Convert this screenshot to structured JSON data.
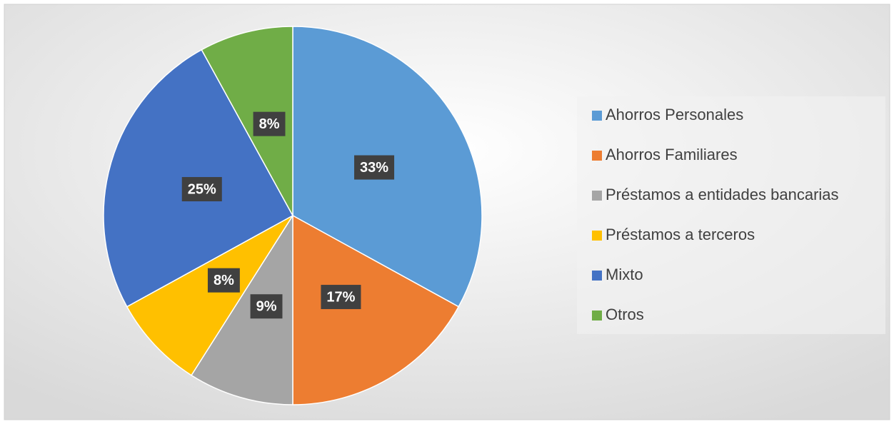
{
  "chart_data": {
    "type": "pie",
    "categories": [
      "Ahorros Personales",
      "Ahorros Familiares",
      "Préstamos a entidades bancarias",
      "Préstamos a terceros",
      "Mixto",
      "Otros"
    ],
    "values": [
      33,
      17,
      9,
      8,
      25,
      8
    ],
    "value_labels": [
      "33%",
      "17%",
      "9%",
      "8%",
      "25%",
      "8%"
    ],
    "colors": [
      "#5b9bd5",
      "#ed7d31",
      "#a5a5a5",
      "#ffc000",
      "#4472c4",
      "#70ad47"
    ],
    "legend": "right"
  }
}
